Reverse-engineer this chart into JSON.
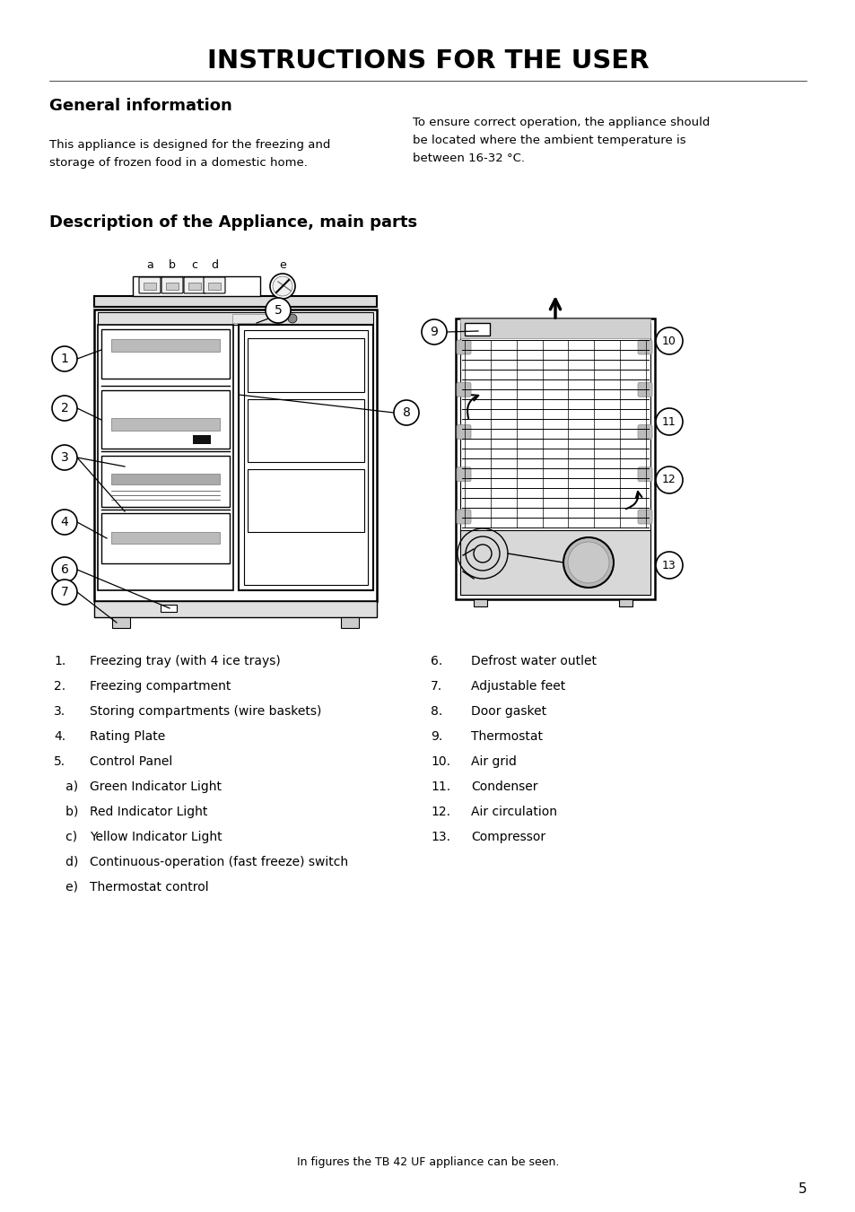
{
  "title": "INSTRUCTIONS FOR THE USER",
  "section1_title": "General information",
  "section1_text1": "This appliance is designed for the freezing and\nstorage of frozen food in a domestic home.",
  "section1_text2": "To ensure correct operation, the appliance should\nbe located where the ambient temperature is\nbetween 16-32 °C.",
  "section2_title": "Description of the Appliance, main parts",
  "items_left": [
    [
      "1.",
      "Freezing tray (with 4 ice trays)"
    ],
    [
      "2.",
      "Freezing compartment"
    ],
    [
      "3.",
      "Storing compartments (wire baskets)"
    ],
    [
      "4.",
      "Rating Plate"
    ],
    [
      "5.",
      "Control Panel"
    ],
    [
      "   a)",
      "Green Indicator Light"
    ],
    [
      "   b)",
      "Red Indicator Light"
    ],
    [
      "   c)",
      "Yellow Indicator Light"
    ],
    [
      "   d)",
      "Continuous-operation (fast freeze) switch"
    ],
    [
      "   e)",
      "Thermostat control"
    ]
  ],
  "items_right": [
    [
      "6.",
      "Defrost water outlet"
    ],
    [
      "7.",
      "Adjustable feet"
    ],
    [
      "8.",
      "Door gasket"
    ],
    [
      "9.",
      "Thermostat"
    ],
    [
      "10.",
      "Air grid"
    ],
    [
      "11.",
      "Condenser"
    ],
    [
      "12.",
      "Air circulation"
    ],
    [
      "13.",
      "Compressor"
    ]
  ],
  "footer": "In figures the TB 42 UF appliance can be seen.",
  "page_number": "5",
  "bg_color": "#ffffff",
  "text_color": "#000000"
}
